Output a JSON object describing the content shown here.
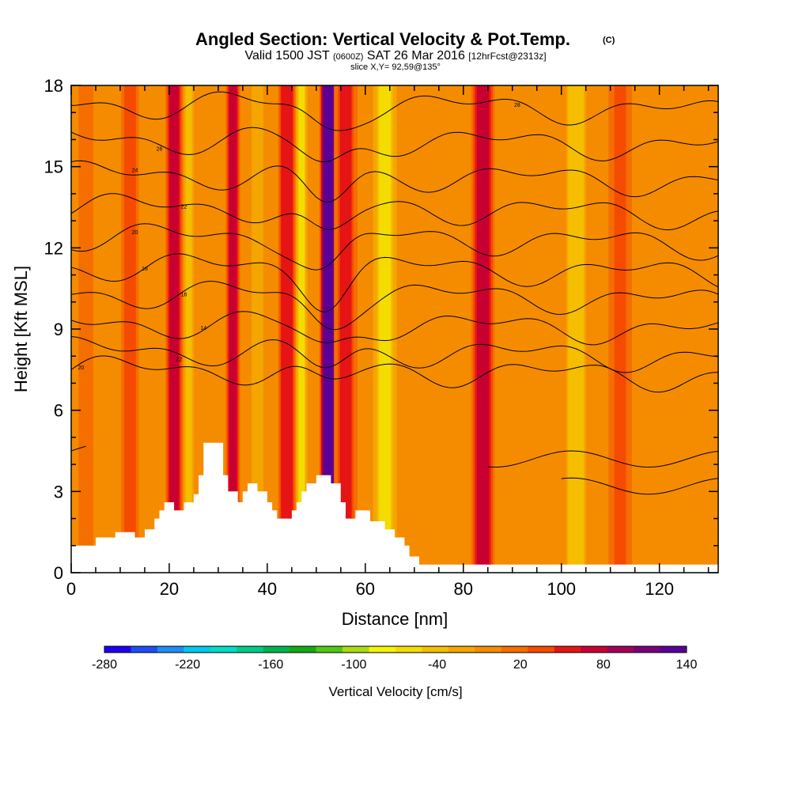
{
  "title": "Angled Section: Vertical Velocity & Pot.Temp.",
  "copyright_mark": "(C)",
  "subtitle": {
    "valid": "Valid 1500 JST",
    "utc": "(0600Z)",
    "date": "SAT 26 Mar 2016",
    "forecast": "[12hrFcst@2313z]"
  },
  "slice_label": "slice X,Y= 92,59@135°",
  "chart_data": {
    "type": "heatmap",
    "xlabel": "Distance [nm]",
    "ylabel": "Height [Kft MSL]",
    "xlim": [
      0,
      132
    ],
    "ylim": [
      0,
      18
    ],
    "x_ticks": [
      "0",
      "20",
      "40",
      "60",
      "80",
      "100",
      "120"
    ],
    "y_ticks": [
      "0",
      "3",
      "6",
      "9",
      "12",
      "15",
      "18"
    ],
    "colorbar": {
      "title": "Vertical Velocity [cm/s]",
      "labels": [
        "-280",
        "-220",
        "-160",
        "-100",
        "-40",
        "20",
        "80",
        "140"
      ],
      "min": -280,
      "max": 140,
      "colors": [
        "#1e00f5",
        "#1e4ef5",
        "#1e8ef5",
        "#00c8f0",
        "#00dcc8",
        "#00cc88",
        "#00b450",
        "#14aa14",
        "#50c814",
        "#aadc14",
        "#f5f500",
        "#f5dc00",
        "#f5be00",
        "#f5a500",
        "#f58c00",
        "#f56e00",
        "#f54b00",
        "#e61414",
        "#c80032",
        "#a0005a",
        "#780078",
        "#5a0096"
      ]
    },
    "terrain": [
      [
        0,
        1
      ],
      [
        5,
        1
      ],
      [
        5,
        1.3
      ],
      [
        9,
        1.3
      ],
      [
        9,
        1.5
      ],
      [
        13,
        1.5
      ],
      [
        13,
        1.3
      ],
      [
        15,
        1.3
      ],
      [
        15,
        1.6
      ],
      [
        17,
        1.6
      ],
      [
        17,
        2.0
      ],
      [
        18,
        2.0
      ],
      [
        18,
        2.3
      ],
      [
        19,
        2.3
      ],
      [
        19,
        2.6
      ],
      [
        21,
        2.6
      ],
      [
        21,
        2.3
      ],
      [
        23,
        2.3
      ],
      [
        23,
        2.6
      ],
      [
        25,
        2.6
      ],
      [
        25,
        2.9
      ],
      [
        26,
        2.9
      ],
      [
        26,
        3.6
      ],
      [
        27,
        3.6
      ],
      [
        27,
        4.8
      ],
      [
        31,
        4.8
      ],
      [
        31,
        3.6
      ],
      [
        32,
        3.6
      ],
      [
        32,
        3.0
      ],
      [
        34,
        3.0
      ],
      [
        34,
        2.6
      ],
      [
        35,
        2.6
      ],
      [
        35,
        3.0
      ],
      [
        36,
        3.0
      ],
      [
        36,
        3.3
      ],
      [
        38,
        3.3
      ],
      [
        38,
        3.0
      ],
      [
        40,
        3.0
      ],
      [
        40,
        2.6
      ],
      [
        41,
        2.6
      ],
      [
        41,
        2.3
      ],
      [
        42,
        2.3
      ],
      [
        42,
        2.0
      ],
      [
        45,
        2.0
      ],
      [
        45,
        2.3
      ],
      [
        46,
        2.3
      ],
      [
        46,
        2.6
      ],
      [
        47,
        2.6
      ],
      [
        47,
        3.0
      ],
      [
        48,
        3.0
      ],
      [
        48,
        3.3
      ],
      [
        50,
        3.3
      ],
      [
        50,
        3.6
      ],
      [
        53,
        3.6
      ],
      [
        53,
        3.3
      ],
      [
        55,
        3.3
      ],
      [
        55,
        2.6
      ],
      [
        56,
        2.6
      ],
      [
        56,
        2.0
      ],
      [
        58,
        2.0
      ],
      [
        58,
        2.3
      ],
      [
        61,
        2.3
      ],
      [
        61,
        1.9
      ],
      [
        64,
        1.9
      ],
      [
        64,
        1.6
      ],
      [
        66,
        1.6
      ],
      [
        66,
        1.3
      ],
      [
        68,
        1.3
      ],
      [
        68,
        1.0
      ],
      [
        69,
        1.0
      ],
      [
        69,
        0.6
      ],
      [
        71,
        0.6
      ],
      [
        71,
        0.3
      ],
      [
        132,
        0.3
      ]
    ],
    "velocity_columns": [
      {
        "x": 3,
        "w": 3,
        "v": 20
      },
      {
        "x": 12,
        "w": 3,
        "v": 35
      },
      {
        "x": 21,
        "w": 3,
        "v": 70
      },
      {
        "x": 24,
        "w": 2,
        "v": -40
      },
      {
        "x": 33,
        "w": 2.5,
        "v": 80
      },
      {
        "x": 38,
        "w": 3,
        "v": -20
      },
      {
        "x": 44,
        "w": 3,
        "v": 60
      },
      {
        "x": 47,
        "w": 2,
        "v": -60
      },
      {
        "x": 52.5,
        "w": 3,
        "v": 140
      },
      {
        "x": 56,
        "w": 4,
        "v": 50
      },
      {
        "x": 64,
        "w": 4,
        "v": -60
      },
      {
        "x": 84,
        "w": 4,
        "v": 80
      },
      {
        "x": 103,
        "w": 4,
        "v": -50
      },
      {
        "x": 112,
        "w": 4,
        "v": 30
      }
    ],
    "isentropes": [
      {
        "y0": 7.5,
        "amp": 0.6,
        "label": "20",
        "lx": 2
      },
      {
        "y0": 8.2,
        "amp": 0.7,
        "label": "22",
        "lx": 22
      },
      {
        "y0": 9.2,
        "amp": 0.9,
        "label": "14",
        "lx": 27
      },
      {
        "y0": 10.3,
        "amp": 1.0,
        "label": "16",
        "lx": 23
      },
      {
        "y0": 11.3,
        "amp": 1.1,
        "label": "18",
        "lx": 15
      },
      {
        "y0": 12.4,
        "amp": 1.2,
        "label": "20",
        "lx": 13
      },
      {
        "y0": 13.5,
        "amp": 1.2,
        "label": "22",
        "lx": 23
      },
      {
        "y0": 14.7,
        "amp": 1.1,
        "label": "24",
        "lx": 13
      },
      {
        "y0": 16.0,
        "amp": 1.0,
        "label": "26",
        "lx": 18
      },
      {
        "y0": 17.3,
        "amp": 0.8,
        "label": "28",
        "lx": 91
      }
    ]
  }
}
